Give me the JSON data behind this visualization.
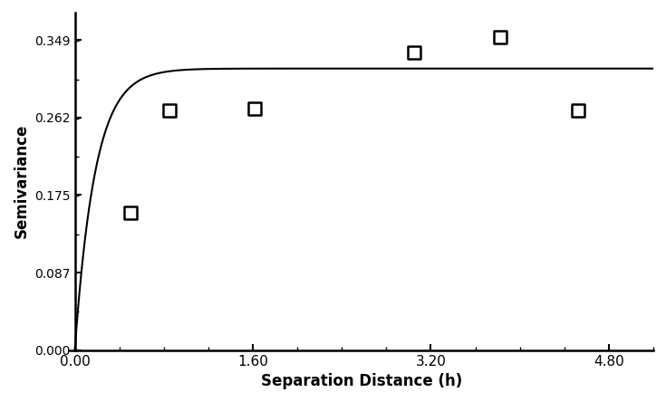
{
  "scatter_x": [
    0.5,
    0.85,
    1.62,
    3.05,
    3.82,
    4.52
  ],
  "scatter_y": [
    0.155,
    0.27,
    0.272,
    0.335,
    0.352,
    0.27
  ],
  "variogram_nugget": 0.0,
  "variogram_sill": 0.317,
  "variogram_range": 0.55,
  "xlabel": "Separation Distance (h)",
  "ylabel": "Semivariance",
  "xlim": [
    -0.05,
    5.2
  ],
  "ylim": [
    0.0,
    0.38
  ],
  "xticks": [
    0.0,
    1.6,
    3.2,
    4.8
  ],
  "yticks": [
    0.0,
    0.087,
    0.175,
    0.262,
    0.349
  ],
  "xtick_labels": [
    "0.00",
    "1.60",
    "3.20",
    "4.80"
  ],
  "ytick_labels": [
    "0.000",
    "0.087",
    "0.175",
    "0.262",
    "0.349"
  ],
  "background_color": "#ffffff",
  "plot_bg_color": "#ffffff",
  "line_color": "#000000",
  "marker_facecolor": "#ffffff",
  "marker_edge_color": "#000000",
  "marker_size": 90,
  "marker_edge_width": 1.8,
  "line_width": 1.5,
  "xlabel_fontsize": 12,
  "ylabel_fontsize": 12,
  "tick_fontsize": 11
}
